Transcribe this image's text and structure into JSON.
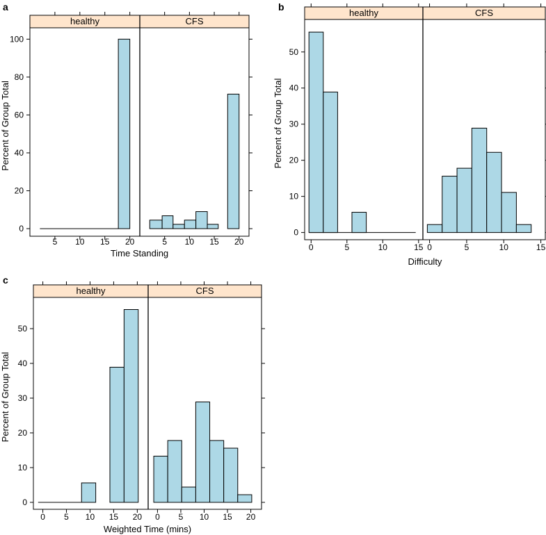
{
  "colors": {
    "bar": "#add8e6",
    "strip": "#ffe5cc",
    "axis": "#000000"
  },
  "chart_data": [
    {
      "type": "bar",
      "panel_label": "a",
      "xlabel": "Time Standing",
      "ylabel": "Percent of Group Total",
      "x_ticks": [
        "5",
        "10",
        "15",
        "20"
      ],
      "y_ticks": [
        "0",
        "20",
        "40",
        "60",
        "80",
        "100"
      ],
      "xlim": [
        0,
        22
      ],
      "ylim": [
        -4,
        106
      ],
      "groups": [
        {
          "name": "healthy",
          "bins": [
            [
              17.7,
              20,
              100
            ]
          ],
          "zero_line": [
            2,
            17.7
          ]
        },
        {
          "name": "CFS",
          "bins": [
            [
              2,
              4.5,
              4.5
            ],
            [
              4.5,
              6.7,
              6.8
            ],
            [
              6.7,
              9,
              2.3
            ],
            [
              9,
              11.3,
              4.5
            ],
            [
              11.3,
              13.6,
              9
            ],
            [
              13.6,
              15.8,
              2.3
            ],
            [
              17.7,
              20,
              71
            ]
          ]
        }
      ]
    },
    {
      "type": "bar",
      "panel_label": "b",
      "xlabel": "Difficulty",
      "ylabel": "Percent of Group Total",
      "x_ticks": [
        "0",
        "5",
        "10",
        "15"
      ],
      "y_ticks": [
        "0",
        "10",
        "20",
        "30",
        "40",
        "50"
      ],
      "xlim": [
        -0.9,
        15.6
      ],
      "ylim": [
        -2,
        59
      ],
      "groups": [
        {
          "name": "healthy",
          "bins": [
            [
              -0.3,
              1.7,
              55.5
            ],
            [
              1.7,
              3.7,
              38.9
            ],
            [
              5.7,
              7.7,
              5.6
            ]
          ],
          "zero_line": [
            -0.3,
            14.6
          ]
        },
        {
          "name": "CFS",
          "bins": [
            [
              -0.3,
              1.7,
              2.2
            ],
            [
              1.7,
              3.7,
              15.6
            ],
            [
              3.7,
              5.7,
              17.8
            ],
            [
              5.7,
              7.7,
              28.9
            ],
            [
              7.7,
              9.7,
              22.2
            ],
            [
              9.7,
              11.7,
              11.1
            ],
            [
              11.7,
              13.7,
              2.2
            ]
          ]
        }
      ]
    },
    {
      "type": "bar",
      "panel_label": "c",
      "xlabel": "Weighted Time (mins)",
      "ylabel": "Percent of Group Total",
      "x_ticks": [
        "0",
        "5",
        "10",
        "15",
        "20"
      ],
      "y_ticks": [
        "0",
        "10",
        "20",
        "30",
        "40",
        "50"
      ],
      "xlim": [
        -2,
        22.3
      ],
      "ylim": [
        -2,
        59
      ],
      "groups": [
        {
          "name": "healthy",
          "bins": [
            [
              8.2,
              11.2,
              5.6
            ],
            [
              14.2,
              17.2,
              38.9
            ],
            [
              17.2,
              20.2,
              55.5
            ]
          ],
          "zero_line": [
            -1,
            8.2
          ]
        },
        {
          "name": "CFS",
          "bins": [
            [
              -0.8,
              2.2,
              13.3
            ],
            [
              2.2,
              5.2,
              17.8
            ],
            [
              5.2,
              8.2,
              4.4
            ],
            [
              8.2,
              11.2,
              28.9
            ],
            [
              11.2,
              14.2,
              17.8
            ],
            [
              14.2,
              17.2,
              15.6
            ],
            [
              17.2,
              20.2,
              2.2
            ]
          ]
        }
      ]
    }
  ]
}
